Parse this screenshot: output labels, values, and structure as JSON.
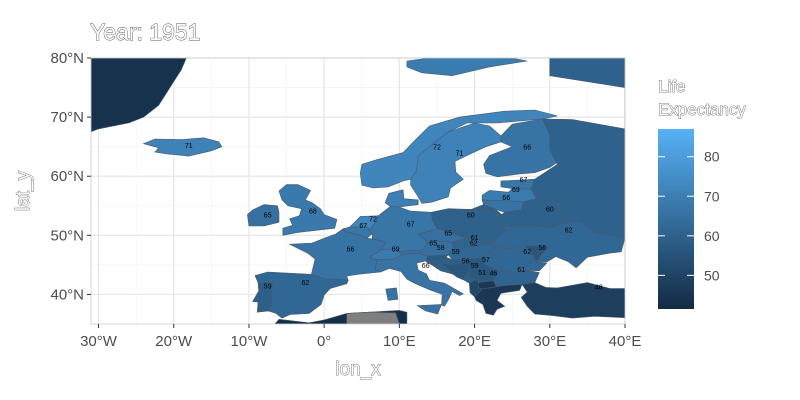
{
  "chart_data": {
    "type": "choropleth",
    "title": "Year: 1951",
    "xlabel": "lon_x",
    "ylabel": "lat_y",
    "xlim": [
      -31,
      40
    ],
    "ylim": [
      35,
      80
    ],
    "grid": true,
    "x_ticks": [
      {
        "value": -30,
        "label": "30°W"
      },
      {
        "value": -20,
        "label": "20°W"
      },
      {
        "value": -10,
        "label": "10°W"
      },
      {
        "value": 0,
        "label": "0°"
      },
      {
        "value": 10,
        "label": "10°E"
      },
      {
        "value": 20,
        "label": "20°E"
      },
      {
        "value": 30,
        "label": "30°E"
      },
      {
        "value": 40,
        "label": "40°E"
      }
    ],
    "y_ticks": [
      {
        "value": 40,
        "label": "40°N"
      },
      {
        "value": 50,
        "label": "50°N"
      },
      {
        "value": 60,
        "label": "60°N"
      },
      {
        "value": 70,
        "label": "70°N"
      },
      {
        "value": 80,
        "label": "80°N"
      }
    ],
    "legend": {
      "title": [
        "Life",
        "Expectancy"
      ],
      "position": "right",
      "min": 41.5,
      "max": 87,
      "ticks": [
        50,
        60,
        70,
        80
      ],
      "low_color": "#132b43",
      "high_color": "#56b1f7",
      "missing_color": "#7f7f7f"
    },
    "regions": [
      {
        "id": "iceland",
        "value": 71,
        "lon": -18.5,
        "lat": 64.8
      },
      {
        "id": "ireland",
        "value": 65,
        "lon": -8.0,
        "lat": 53.2
      },
      {
        "id": "uk",
        "value": 68,
        "lon": -1.8,
        "lat": 53.4
      },
      {
        "id": "norway",
        "value": 72,
        "lon": 9.5,
        "lat": 62.0
      },
      {
        "id": "sweden",
        "value": 71,
        "lon": 15.5,
        "lat": 61.0
      },
      {
        "id": "finland",
        "value": 66,
        "lon": 26.5,
        "lat": 64.0
      },
      {
        "id": "denmark",
        "value": 70,
        "lon": 9.5,
        "lat": 56.0
      },
      {
        "id": "estonia",
        "value": 67,
        "lon": 26.0,
        "lat": 58.7
      },
      {
        "id": "latvia",
        "value": 69,
        "lon": 24.7,
        "lat": 57.2
      },
      {
        "id": "lithuania",
        "value": 66,
        "lon": 23.5,
        "lat": 55.7
      },
      {
        "id": "netherlands",
        "value": 72,
        "lon": 5.5,
        "lat": 52.3
      },
      {
        "id": "belgium",
        "value": 67,
        "lon": 4.8,
        "lat": 50.8
      },
      {
        "id": "germany",
        "value": 67,
        "lon": 10.5,
        "lat": 51.3
      },
      {
        "id": "poland",
        "value": 60,
        "lon": 19.5,
        "lat": 52.5
      },
      {
        "id": "russia",
        "value": 60,
        "lon": 33.0,
        "lat": 55.0
      },
      {
        "id": "belarus",
        "value": 60,
        "lon": 27.5,
        "lat": 53.5
      },
      {
        "id": "ukraine",
        "value": 62,
        "lon": 32.0,
        "lat": 49.2
      },
      {
        "id": "moldova",
        "value": 56,
        "lon": 28.5,
        "lat": 47.2
      },
      {
        "id": "czechia",
        "value": 65,
        "lon": 15.5,
        "lat": 49.8
      },
      {
        "id": "slovakia",
        "value": 61,
        "lon": 19.5,
        "lat": 48.7
      },
      {
        "id": "hungary",
        "value": 62,
        "lon": 19.2,
        "lat": 47.2
      },
      {
        "id": "austria",
        "value": 65,
        "lon": 14.0,
        "lat": 47.6
      },
      {
        "id": "switzerland",
        "value": 69,
        "lon": 8.2,
        "lat": 46.8
      },
      {
        "id": "france",
        "value": 66,
        "lon": 2.5,
        "lat": 46.6
      },
      {
        "id": "slovenia",
        "value": 58,
        "lon": 14.8,
        "lat": 46.1
      },
      {
        "id": "croatia",
        "value": 59,
        "lon": 16.8,
        "lat": 45.4
      },
      {
        "id": "bosnia",
        "value": 56,
        "lon": 18.2,
        "lat": 44.2
      },
      {
        "id": "serbia",
        "value": 57,
        "lon": 20.8,
        "lat": 44.2
      },
      {
        "id": "romania",
        "value": 62,
        "lon": 25.0,
        "lat": 45.9
      },
      {
        "id": "bulgaria",
        "value": 61,
        "lon": 25.5,
        "lat": 42.7
      },
      {
        "id": "montenegro",
        "value": 59,
        "lon": 19.3,
        "lat": 42.8
      },
      {
        "id": "north-macedonia",
        "value": 46,
        "lon": 21.7,
        "lat": 41.6
      },
      {
        "id": "albania",
        "value": 51,
        "lon": 20.1,
        "lat": 41.0
      },
      {
        "id": "greece",
        "value": 46,
        "lon": 22.5,
        "lat": 39.3
      },
      {
        "id": "italy",
        "value": 66,
        "lon": 12.6,
        "lat": 42.8
      },
      {
        "id": "spain",
        "value": 62,
        "lon": -3.7,
        "lat": 40.3
      },
      {
        "id": "portugal",
        "value": 59,
        "lon": -8.2,
        "lat": 39.6
      },
      {
        "id": "turkey",
        "value": 48,
        "lon": 35.0,
        "lat": 39.0
      },
      {
        "id": "greenland",
        "value": 44,
        "lon": -25.0,
        "lat": 75.0
      },
      {
        "id": "svalbard",
        "value": 69,
        "lon": 18.0,
        "lat": 78.5
      },
      {
        "id": "north-africa",
        "value": 43,
        "lon": 20.0,
        "lat": 34.0
      },
      {
        "id": "algeria-missing",
        "value": null,
        "lon": 6.0,
        "lat": 34.0
      }
    ],
    "value_labels": [
      {
        "text": "71",
        "lon": -18.0,
        "lat": 64.8
      },
      {
        "text": "65",
        "lon": -7.5,
        "lat": 53.0
      },
      {
        "text": "68",
        "lon": -1.5,
        "lat": 53.7
      },
      {
        "text": "72",
        "lon": 15.0,
        "lat": 64.5
      },
      {
        "text": "71",
        "lon": 18.0,
        "lat": 63.5
      },
      {
        "text": "66",
        "lon": 27.0,
        "lat": 64.5
      },
      {
        "text": "67",
        "lon": 26.5,
        "lat": 59.0
      },
      {
        "text": "69",
        "lon": 25.5,
        "lat": 57.3
      },
      {
        "text": "66",
        "lon": 24.2,
        "lat": 56.0
      },
      {
        "text": "60",
        "lon": 19.5,
        "lat": 53.0
      },
      {
        "text": "60",
        "lon": 30.0,
        "lat": 54.0
      },
      {
        "text": "62",
        "lon": 32.5,
        "lat": 50.5
      },
      {
        "text": "56",
        "lon": 29.0,
        "lat": 47.5
      },
      {
        "text": "72",
        "lon": 6.5,
        "lat": 52.3
      },
      {
        "text": "67",
        "lon": 5.2,
        "lat": 51.2
      },
      {
        "text": "67",
        "lon": 11.5,
        "lat": 51.5
      },
      {
        "text": "65",
        "lon": 16.5,
        "lat": 50.0
      },
      {
        "text": "61",
        "lon": 20.0,
        "lat": 49.2
      },
      {
        "text": "62",
        "lon": 19.9,
        "lat": 48.3
      },
      {
        "text": "65",
        "lon": 14.5,
        "lat": 48.3
      },
      {
        "text": "69",
        "lon": 9.5,
        "lat": 47.3
      },
      {
        "text": "66",
        "lon": 3.5,
        "lat": 47.3
      },
      {
        "text": "58",
        "lon": 15.5,
        "lat": 47.5
      },
      {
        "text": "59",
        "lon": 17.5,
        "lat": 46.8
      },
      {
        "text": "62",
        "lon": 27.0,
        "lat": 46.8
      },
      {
        "text": "56",
        "lon": 18.8,
        "lat": 45.2
      },
      {
        "text": "57",
        "lon": 21.5,
        "lat": 45.5
      },
      {
        "text": "59",
        "lon": 20.0,
        "lat": 44.5
      },
      {
        "text": "61",
        "lon": 26.2,
        "lat": 43.8
      },
      {
        "text": "51",
        "lon": 21.0,
        "lat": 43.3
      },
      {
        "text": "46",
        "lon": 22.5,
        "lat": 43.2
      },
      {
        "text": "66",
        "lon": 13.5,
        "lat": 44.5
      },
      {
        "text": "62",
        "lon": -2.5,
        "lat": 41.6
      },
      {
        "text": "59",
        "lon": -7.5,
        "lat": 41.0
      },
      {
        "text": "48",
        "lon": 36.5,
        "lat": 40.8
      }
    ]
  }
}
